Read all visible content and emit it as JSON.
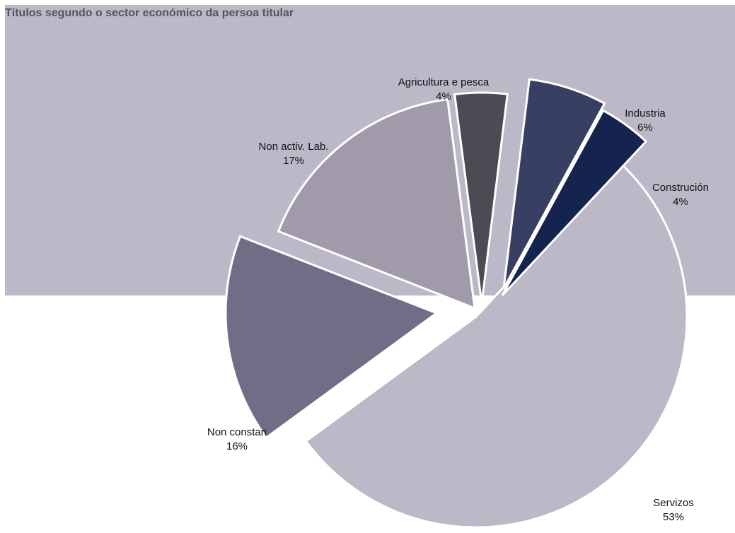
{
  "chart_data": {
    "type": "pie",
    "title": "Títulos segundo o sector económico da persoa titular",
    "slices": [
      {
        "name": "Servizos",
        "value": 53,
        "value_label": "53%",
        "color": "#bbb8c8"
      },
      {
        "name": "Non constan",
        "value": 16,
        "value_label": "16%",
        "color": "#716d86"
      },
      {
        "name": "Non activ. Lab.",
        "value": 17,
        "value_label": "17%",
        "color": "#a09aab"
      },
      {
        "name": "Agricultura e pesca",
        "value": 4,
        "value_label": "4%",
        "color": "#4c4b53"
      },
      {
        "name": "Industria",
        "value": 6,
        "value_label": "6%",
        "color": "#374063"
      },
      {
        "name": "Construción",
        "value": 4,
        "value_label": "4%",
        "color": "#14244f"
      }
    ],
    "exploded": true,
    "background_color": "#bbb8c8",
    "legend": "none"
  }
}
